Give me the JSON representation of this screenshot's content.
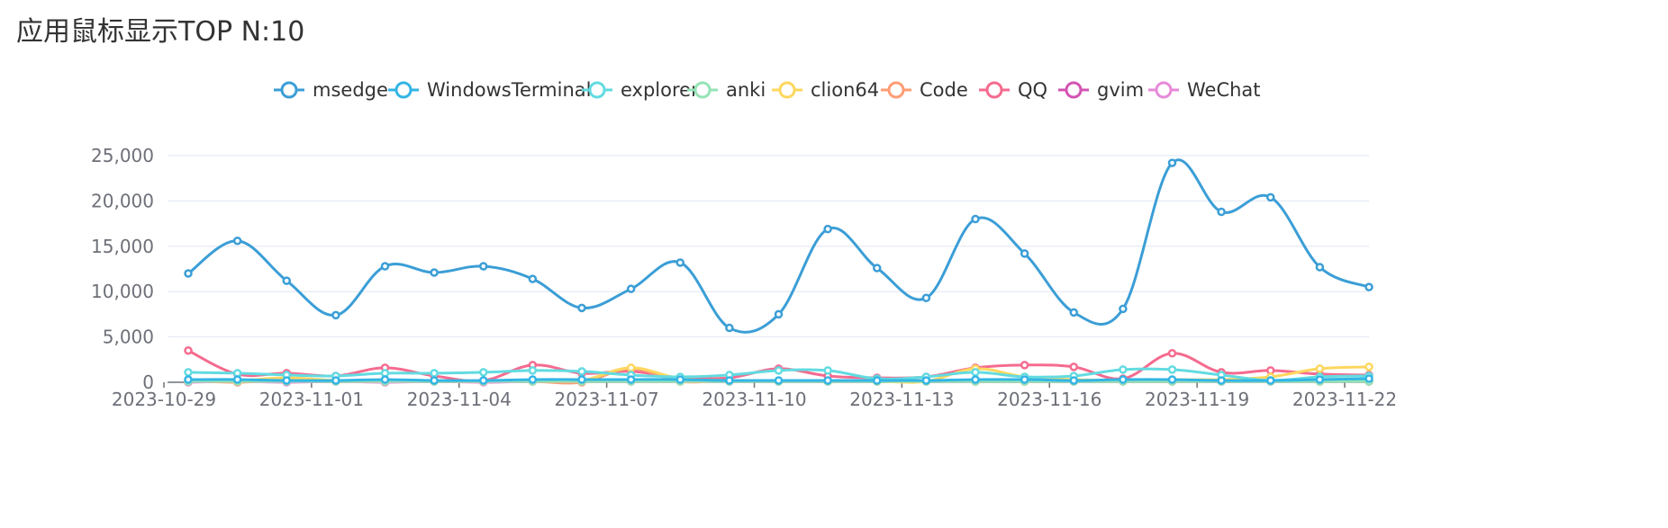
{
  "chart_data": {
    "type": "line",
    "title": "应用鼠标显示TOP N:10",
    "xlabel": "",
    "ylabel": "",
    "ylim": [
      0,
      25000
    ],
    "yticks": [
      "0",
      "5,000",
      "10,000",
      "15,000",
      "20,000",
      "25,000"
    ],
    "grid": true,
    "smooth": true,
    "legend_position": "top",
    "x": [
      "2023-10-29",
      "2023-10-30",
      "2023-10-31",
      "2023-11-01",
      "2023-11-02",
      "2023-11-03",
      "2023-11-04",
      "2023-11-05",
      "2023-11-06",
      "2023-11-07",
      "2023-11-08",
      "2023-11-09",
      "2023-11-10",
      "2023-11-11",
      "2023-11-12",
      "2023-11-13",
      "2023-11-14",
      "2023-11-15",
      "2023-11-16",
      "2023-11-17",
      "2023-11-18",
      "2023-11-19",
      "2023-11-20",
      "2023-11-21",
      "2023-11-22"
    ],
    "x_tick_labels": [
      "2023-10-29",
      "2023-11-01",
      "2023-11-04",
      "2023-11-07",
      "2023-11-10",
      "2023-11-13",
      "2023-11-16",
      "2023-11-19",
      "2023-11-22"
    ],
    "series": [
      {
        "name": "msedge",
        "color": "#3b9ed6",
        "values": [
          12000,
          15600,
          11200,
          7400,
          12800,
          12100,
          12800,
          11400,
          8200,
          10300,
          13200,
          6000,
          7500,
          16900,
          12600,
          9300,
          18000,
          14200,
          7700,
          8100,
          24200,
          18800,
          20400,
          12700,
          10500
        ]
      },
      {
        "name": "WindowsTerminal",
        "color": "#33b5e5",
        "values": [
          300,
          300,
          200,
          200,
          300,
          200,
          200,
          300,
          300,
          300,
          300,
          200,
          200,
          200,
          200,
          200,
          300,
          300,
          200,
          300,
          300,
          200,
          200,
          300,
          400
        ]
      },
      {
        "name": "explorer",
        "color": "#62dbe1",
        "values": [
          1100,
          1000,
          800,
          700,
          1000,
          1000,
          1100,
          1300,
          1200,
          800,
          600,
          800,
          1300,
          1300,
          400,
          600,
          1100,
          600,
          700,
          1400,
          1400,
          800,
          200,
          600,
          700
        ]
      },
      {
        "name": "anki",
        "color": "#95e3b6",
        "values": [
          100,
          100,
          100,
          100,
          100,
          100,
          100,
          100,
          100,
          100,
          100,
          100,
          100,
          100,
          100,
          100,
          100,
          100,
          100,
          100,
          100,
          100,
          100,
          100,
          100
        ]
      },
      {
        "name": "clion64",
        "color": "#ffd75e",
        "values": [
          300,
          200,
          500,
          200,
          200,
          100,
          100,
          200,
          200,
          1600,
          400,
          200,
          100,
          100,
          100,
          100,
          1500,
          600,
          300,
          200,
          300,
          300,
          600,
          1500,
          1700
        ]
      },
      {
        "name": "Code",
        "color": "#ff9c74",
        "values": [
          200,
          0,
          300,
          100,
          100,
          100,
          100,
          100,
          0,
          1500,
          100,
          200,
          100,
          100,
          100,
          100,
          100,
          100,
          100,
          100,
          100,
          100,
          100,
          100,
          100
        ]
      },
      {
        "name": "QQ",
        "color": "#f56b8f",
        "values": [
          3500,
          900,
          1000,
          700,
          1600,
          700,
          200,
          1900,
          1000,
          1200,
          500,
          500,
          1500,
          700,
          500,
          600,
          1600,
          1900,
          1700,
          400,
          3200,
          1100,
          1300,
          900,
          800
        ]
      },
      {
        "name": "gvim",
        "color": "#d354b3",
        "values": [
          100,
          100,
          100,
          100,
          100,
          100,
          100,
          100,
          100,
          100,
          100,
          100,
          100,
          100,
          100,
          100,
          100,
          100,
          100,
          100,
          100,
          100,
          100,
          100,
          100
        ]
      },
      {
        "name": "WeChat",
        "color": "#e78ad8",
        "values": [
          0,
          100,
          0,
          100,
          0,
          100,
          0,
          100,
          100,
          100,
          100,
          100,
          100,
          100,
          100,
          100,
          100,
          100,
          100,
          100,
          100,
          100,
          100,
          100,
          100
        ]
      }
    ]
  }
}
